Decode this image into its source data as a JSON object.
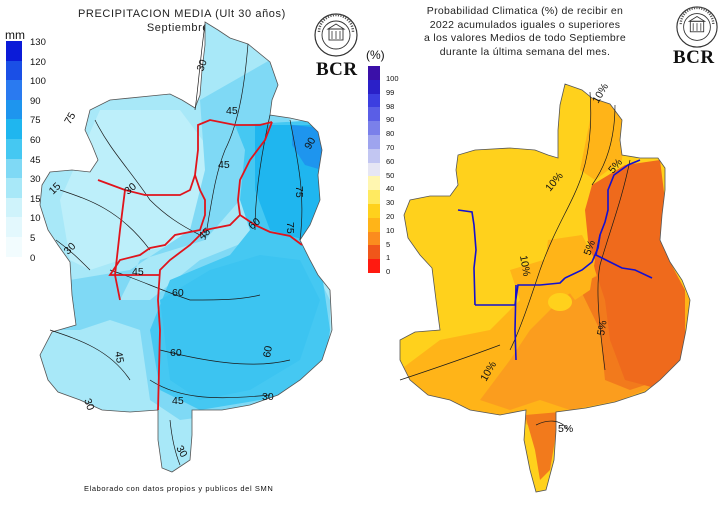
{
  "left_map": {
    "title_line1": "PRECIPITACION MEDIA (Ult 30 años)",
    "title_line2": "Septiembre",
    "legend_unit": "mm",
    "legend": [
      {
        "label": "130",
        "color": "#0b1bd8"
      },
      {
        "label": "120",
        "color": "#1a4fe6"
      },
      {
        "label": "100",
        "color": "#2a7af0"
      },
      {
        "label": "90",
        "color": "#1e95ee"
      },
      {
        "label": "75",
        "color": "#1fb6ef"
      },
      {
        "label": "60",
        "color": "#45c8f2"
      },
      {
        "label": "45",
        "color": "#7fd9f5"
      },
      {
        "label": "30",
        "color": "#a8e8f8"
      },
      {
        "label": "15",
        "color": "#cff3fb"
      },
      {
        "label": "10",
        "color": "#e3f8fd"
      },
      {
        "label": "5",
        "color": "#f2fcfe"
      },
      {
        "label": "0",
        "color": ""
      }
    ],
    "contour_labels": [
      "30",
      "75",
      "45",
      "45",
      "30",
      "15",
      "30",
      "45",
      "90",
      "75",
      "60",
      "75",
      "60",
      "60",
      "45",
      "45",
      "30",
      "60",
      "30",
      "30"
    ],
    "footer": "Elaborado con datos propios y publicos del SMN"
  },
  "right_map": {
    "title_line1": "Probabilidad Climatica (%) de recibir en",
    "title_line2": "2022 acumulados iguales o superiores",
    "title_line3": "a los valores Medios de todo Septiembre",
    "title_line4": "durante la última semana del mes.",
    "legend_unit": "(%)",
    "legend": [
      {
        "label": "100",
        "color": "#3a10a8"
      },
      {
        "label": "99",
        "color": "#2a20c8"
      },
      {
        "label": "98",
        "color": "#3c3ee0"
      },
      {
        "label": "90",
        "color": "#5a5ee6"
      },
      {
        "label": "80",
        "color": "#7a80ea"
      },
      {
        "label": "70",
        "color": "#9ea4ee"
      },
      {
        "label": "60",
        "color": "#c2c6f2"
      },
      {
        "label": "50",
        "color": "#e6e6f4"
      },
      {
        "label": "40",
        "color": "#fff6b0"
      },
      {
        "label": "30",
        "color": "#ffea60"
      },
      {
        "label": "20",
        "color": "#ffd11c"
      },
      {
        "label": "10",
        "color": "#ffb418"
      },
      {
        "label": "5",
        "color": "#fb8c1e"
      },
      {
        "label": "1",
        "color": "#f0561a"
      },
      {
        "label": "0",
        "color": "#ff1a10"
      }
    ],
    "contour_labels": [
      "10%",
      "10%",
      "5%",
      "5%",
      "10%",
      "5%",
      "10%",
      "5%"
    ]
  },
  "logo": {
    "text": "BCR",
    "seal_icon": "bolsa-de-comercio-rosario-seal-icon"
  },
  "colors": {
    "boundary_red": "#e0141c",
    "boundary_blue": "#1410d0",
    "contour_line": "#1a1a1a"
  }
}
